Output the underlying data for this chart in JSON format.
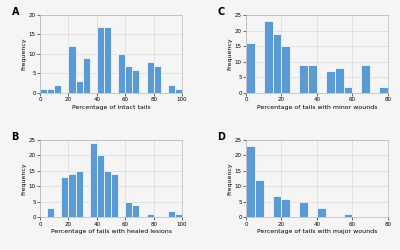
{
  "panel_A": {
    "label": "A",
    "xlabel": "Percentage of intact tails",
    "ylabel": "Frequency",
    "xlim": [
      0,
      100
    ],
    "ylim": [
      0,
      20
    ],
    "yticks": [
      0,
      5,
      10,
      15,
      20
    ],
    "xticks": [
      0,
      20,
      40,
      60,
      80,
      100
    ],
    "bins": [
      0,
      5,
      10,
      15,
      20,
      25,
      30,
      35,
      40,
      45,
      50,
      55,
      60,
      65,
      70,
      75,
      80,
      85,
      90,
      95,
      100
    ],
    "heights": [
      1,
      1,
      2,
      0,
      12,
      3,
      9,
      0,
      17,
      17,
      0,
      10,
      7,
      6,
      0,
      8,
      7,
      0,
      2,
      1
    ]
  },
  "panel_B": {
    "label": "B",
    "xlabel": "Percentage of tails with healed lesions",
    "ylabel": "Frequency",
    "xlim": [
      0,
      100
    ],
    "ylim": [
      0,
      25
    ],
    "yticks": [
      0,
      5,
      10,
      15,
      20,
      25
    ],
    "xticks": [
      0,
      20,
      40,
      60,
      80,
      100
    ],
    "bins": [
      0,
      5,
      10,
      15,
      20,
      25,
      30,
      35,
      40,
      45,
      50,
      55,
      60,
      65,
      70,
      75,
      80,
      85,
      90,
      95,
      100
    ],
    "heights": [
      0,
      3,
      0,
      13,
      14,
      15,
      0,
      24,
      20,
      15,
      14,
      0,
      5,
      4,
      0,
      1,
      0,
      0,
      2,
      1
    ]
  },
  "panel_C": {
    "label": "C",
    "xlabel": "Percentage of tails with minor wounds",
    "ylabel": "Frequency",
    "xlim": [
      0,
      80
    ],
    "ylim": [
      0,
      25
    ],
    "yticks": [
      0,
      5,
      10,
      15,
      20,
      25
    ],
    "xticks": [
      0,
      20,
      40,
      60,
      80
    ],
    "bins": [
      0,
      5,
      10,
      15,
      20,
      25,
      30,
      35,
      40,
      45,
      50,
      55,
      60,
      65,
      70,
      75,
      80
    ],
    "heights": [
      16,
      0,
      23,
      19,
      15,
      0,
      9,
      9,
      0,
      7,
      8,
      2,
      0,
      9,
      0,
      2
    ]
  },
  "panel_D": {
    "label": "D",
    "xlabel": "Percentage of tails with major wounds",
    "ylabel": "Frequency",
    "xlim": [
      0,
      80
    ],
    "ylim": [
      0,
      25
    ],
    "yticks": [
      0,
      5,
      10,
      15,
      20,
      25
    ],
    "xticks": [
      0,
      20,
      40,
      60,
      80
    ],
    "bins": [
      0,
      5,
      10,
      15,
      20,
      25,
      30,
      35,
      40,
      45,
      50,
      55,
      60,
      65,
      70,
      75,
      80
    ],
    "heights": [
      23,
      12,
      0,
      7,
      6,
      0,
      5,
      0,
      3,
      0,
      0,
      1,
      0,
      0,
      0,
      0
    ]
  },
  "bar_color": "#5b9bd5",
  "bar_edgecolor": "white",
  "grid_color": "#cccccc",
  "bg_color": "#f5f5f5",
  "label_fontsize": 4.5,
  "tick_fontsize": 4,
  "panel_label_fontsize": 7
}
